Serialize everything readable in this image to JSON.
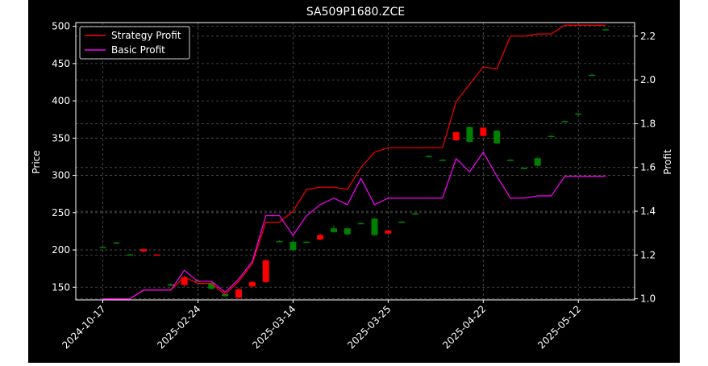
{
  "chart_data": {
    "type": "candlestick+line",
    "title": "SA509P1680.ZCE",
    "xlabel": "",
    "ylabel": "Price",
    "y2label": "Profit",
    "ylim": [
      133,
      505
    ],
    "y2lim": [
      0.995,
      2.262
    ],
    "yticks": [
      150,
      200,
      250,
      300,
      350,
      400,
      450,
      500
    ],
    "y2ticks": [
      1.0,
      1.2,
      1.4,
      1.6,
      1.8,
      2.0,
      2.2
    ],
    "xtick_labels": [
      "2024-10-17",
      "2025-02-24",
      "2025-03-14",
      "2025-03-25",
      "2025-04-22",
      "2025-05-12"
    ],
    "xtick_index": [
      0,
      7,
      14,
      21,
      28,
      35
    ],
    "grid": true,
    "legend_position": "top-left",
    "colors": {
      "up": "#008000",
      "down": "#ff0000",
      "strategy": "#ff0000",
      "basic": "#ff00ff",
      "background": "#000000",
      "grid": "#555555"
    },
    "candles": [
      {
        "o": 204,
        "h": 205,
        "l": 204,
        "c": 204
      },
      {
        "o": 210,
        "h": 211,
        "l": 210,
        "c": 210
      },
      {
        "o": 193,
        "h": 195,
        "l": 192,
        "c": 194
      },
      {
        "o": 201,
        "h": 202,
        "l": 197,
        "c": 198
      },
      {
        "o": 194,
        "h": 194,
        "l": 193,
        "c": 193
      },
      {
        "o": 152,
        "h": 155,
        "l": 151,
        "c": 154
      },
      {
        "o": 163,
        "h": 165,
        "l": 151,
        "c": 153
      },
      {
        "o": 159,
        "h": 160,
        "l": 158,
        "c": 159
      },
      {
        "o": 148,
        "h": 157,
        "l": 147,
        "c": 156
      },
      {
        "o": 138,
        "h": 141,
        "l": 137,
        "c": 141
      },
      {
        "o": 147,
        "h": 149,
        "l": 135,
        "c": 136
      },
      {
        "o": 157,
        "h": 158,
        "l": 150,
        "c": 151
      },
      {
        "o": 186,
        "h": 188,
        "l": 156,
        "c": 157
      },
      {
        "o": 212,
        "h": 213,
        "l": 211,
        "c": 212
      },
      {
        "o": 200,
        "h": 212,
        "l": 199,
        "c": 211
      },
      {
        "o": 211,
        "h": 212,
        "l": 210,
        "c": 211
      },
      {
        "o": 220,
        "h": 222,
        "l": 213,
        "c": 214
      },
      {
        "o": 224,
        "h": 233,
        "l": 223,
        "c": 229
      },
      {
        "o": 221,
        "h": 230,
        "l": 220,
        "c": 229
      },
      {
        "o": 236,
        "h": 237,
        "l": 235,
        "c": 236
      },
      {
        "o": 220,
        "h": 243,
        "l": 219,
        "c": 242
      },
      {
        "o": 226,
        "h": 227,
        "l": 221,
        "c": 222
      },
      {
        "o": 238,
        "h": 239,
        "l": 237,
        "c": 238
      },
      {
        "o": 249,
        "h": 250,
        "l": 248,
        "c": 249
      },
      {
        "o": 326,
        "h": 327,
        "l": 325,
        "c": 326
      },
      {
        "o": 321,
        "h": 322,
        "l": 320,
        "c": 321
      },
      {
        "o": 358,
        "h": 359,
        "l": 346,
        "c": 347
      },
      {
        "o": 345,
        "h": 366,
        "l": 344,
        "c": 365
      },
      {
        "o": 364,
        "h": 365,
        "l": 352,
        "c": 353
      },
      {
        "o": 343,
        "h": 361,
        "l": 342,
        "c": 360
      },
      {
        "o": 321,
        "h": 322,
        "l": 320,
        "c": 321
      },
      {
        "o": 310,
        "h": 311,
        "l": 309,
        "c": 310
      },
      {
        "o": 313,
        "h": 324,
        "l": 312,
        "c": 323
      },
      {
        "o": 353,
        "h": 354,
        "l": 352,
        "c": 353
      },
      {
        "o": 373,
        "h": 374,
        "l": 372,
        "c": 373
      },
      {
        "o": 383,
        "h": 384,
        "l": 382,
        "c": 383
      },
      {
        "o": 435,
        "h": 436,
        "l": 434,
        "c": 435
      },
      {
        "o": 496,
        "h": 497,
        "l": 495,
        "c": 496
      }
    ],
    "series": [
      {
        "name": "Strategy Profit",
        "values": [
          1.0,
          1.0,
          1.0,
          1.04,
          1.04,
          1.04,
          1.1,
          1.07,
          1.07,
          1.02,
          1.08,
          1.16,
          1.35,
          1.35,
          1.4,
          1.5,
          1.51,
          1.51,
          1.5,
          1.6,
          1.67,
          1.69,
          1.69,
          1.69,
          1.69,
          1.69,
          1.9,
          1.98,
          2.06,
          2.05,
          2.2,
          2.2,
          2.21,
          2.21,
          2.25,
          2.25,
          2.25,
          2.25
        ]
      },
      {
        "name": "Basic Profit",
        "values": [
          1.0,
          1.0,
          1.0,
          1.04,
          1.04,
          1.04,
          1.13,
          1.08,
          1.08,
          1.03,
          1.09,
          1.17,
          1.38,
          1.38,
          1.29,
          1.38,
          1.43,
          1.46,
          1.43,
          1.55,
          1.43,
          1.46,
          1.46,
          1.46,
          1.46,
          1.46,
          1.64,
          1.58,
          1.67,
          1.56,
          1.46,
          1.46,
          1.47,
          1.47,
          1.56,
          1.56,
          1.56,
          1.56
        ]
      }
    ]
  }
}
